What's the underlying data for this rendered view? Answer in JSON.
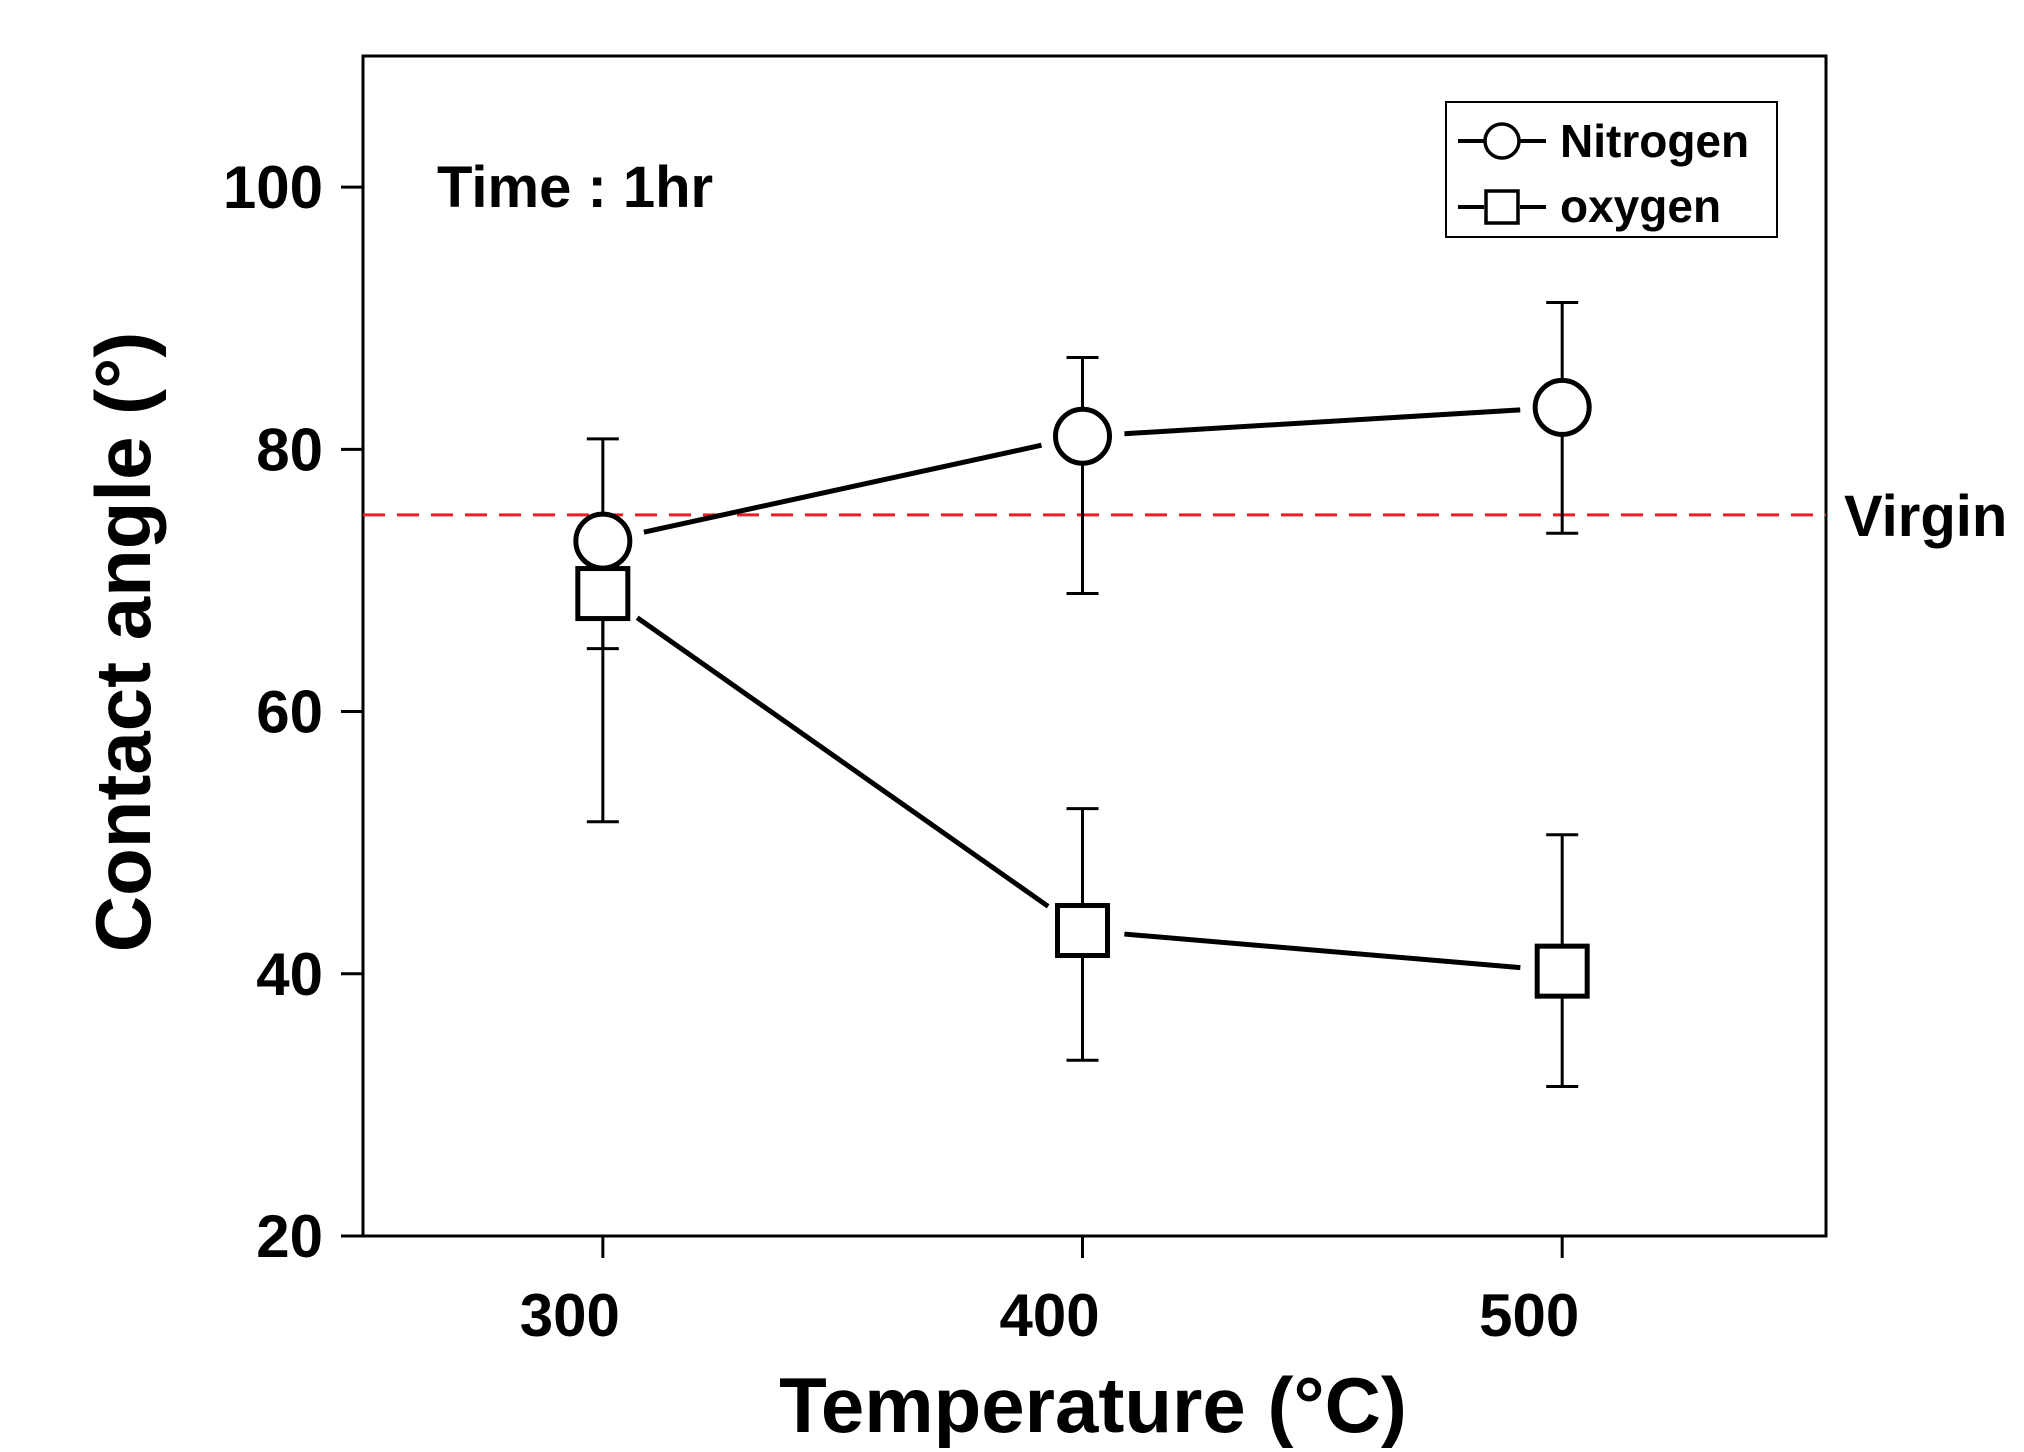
{
  "chart_data": {
    "type": "line",
    "title": "",
    "xlabel": "Temperature (°C)",
    "ylabel": "Contact angle (°)",
    "x": [
      300,
      400,
      500
    ],
    "xlim": [
      250,
      555
    ],
    "ylim": [
      20,
      110
    ],
    "xticks": [
      300,
      400,
      500
    ],
    "yticks": [
      20,
      40,
      60,
      80,
      100
    ],
    "xtick_labels": [
      "300",
      "400",
      "500"
    ],
    "ytick_labels": [
      "20",
      "40",
      "60",
      "80",
      "100"
    ],
    "series": [
      {
        "name": "Nitrogen",
        "marker": "circle",
        "values": [
          73,
          81,
          83.2
        ],
        "error_low": [
          64.8,
          69,
          73.6
        ],
        "error_high": [
          80.8,
          87,
          91.2
        ]
      },
      {
        "name": "oxygen",
        "marker": "square",
        "values": [
          69,
          43.3,
          40.2
        ],
        "error_low": [
          51.6,
          33.4,
          31.4
        ],
        "error_high": [
          68.8,
          52.6,
          50.6
        ]
      }
    ],
    "reference_line": {
      "label": "Virgin",
      "value": 75,
      "color": "#ee1c25",
      "style": "dashed"
    },
    "annotation": "Time : 1hr",
    "legend_position": "top-right",
    "grid": false
  }
}
